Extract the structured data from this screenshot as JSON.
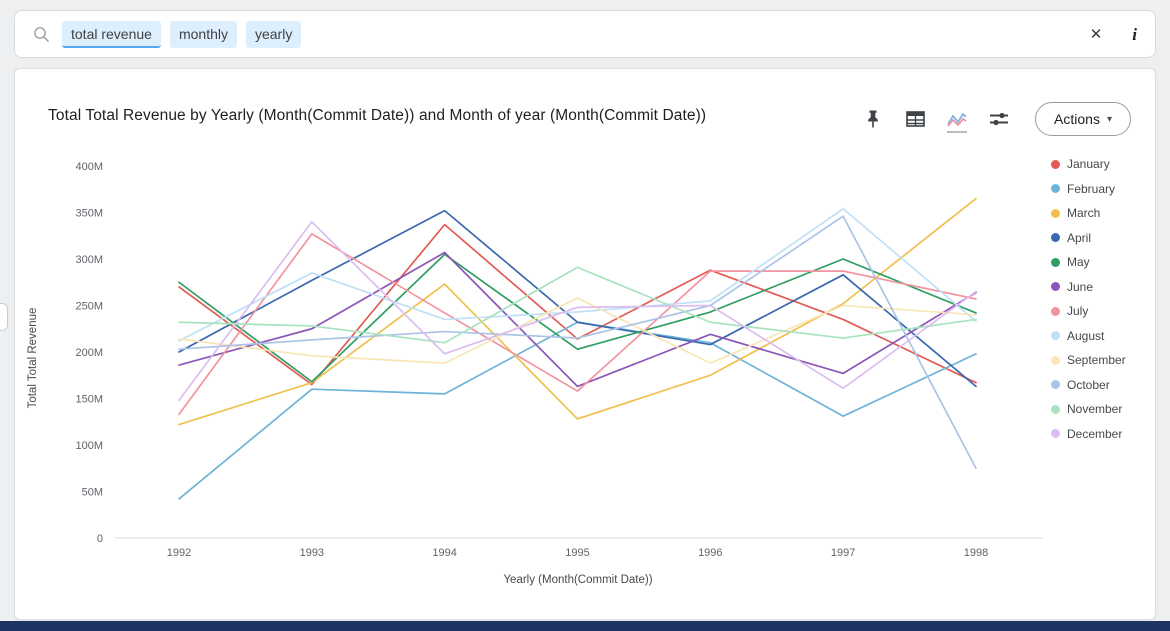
{
  "search_bar": {
    "tokens": [
      "total revenue",
      "monthly",
      "yearly"
    ],
    "active_token_index": 0,
    "clear_label": "✕",
    "info_label": "i"
  },
  "chart_card": {
    "title": "Total Total Revenue by Yearly (Month(Commit Date)) and Month of year (Month(Commit Date))",
    "actions_label": "Actions",
    "actions_caret": "▾"
  },
  "chart_data": {
    "type": "line",
    "title": "Total Total Revenue by Yearly (Month(Commit Date)) and Month of year (Month(Commit Date))",
    "xlabel": "Yearly (Month(Commit Date))",
    "ylabel": "Total Total Revenue",
    "categories": [
      "1992",
      "1993",
      "1994",
      "1995",
      "1996",
      "1997",
      "1998"
    ],
    "y_ticks": [
      "400M",
      "350M",
      "300M",
      "250M",
      "200M",
      "150M",
      "100M",
      "50M",
      "0"
    ],
    "ylim": [
      0,
      400
    ],
    "unit": "M (millions)",
    "grid": false,
    "legend_position": "right",
    "series": [
      {
        "name": "January",
        "color": "#e25c55",
        "values": [
          270,
          165,
          337,
          214,
          288,
          235,
          167
        ]
      },
      {
        "name": "February",
        "color": "#6fb3d9",
        "values": [
          42,
          160,
          155,
          232,
          210,
          131,
          198
        ]
      },
      {
        "name": "March",
        "color": "#f0c04d",
        "values": [
          122,
          167,
          273,
          128,
          175,
          252,
          365
        ]
      },
      {
        "name": "April",
        "color": "#3a68ae",
        "values": [
          200,
          277,
          352,
          232,
          208,
          283,
          163
        ]
      },
      {
        "name": "May",
        "color": "#2f9e62",
        "values": [
          275,
          168,
          305,
          203,
          243,
          300,
          242
        ]
      },
      {
        "name": "June",
        "color": "#8a56b8",
        "values": [
          186,
          225,
          307,
          163,
          219,
          177,
          264
        ]
      },
      {
        "name": "July",
        "color": "#f2949f",
        "values": [
          133,
          327,
          242,
          158,
          287,
          287,
          257
        ]
      },
      {
        "name": "August",
        "color": "#bfe0f5",
        "values": [
          212,
          285,
          235,
          243,
          255,
          354,
          233
        ]
      },
      {
        "name": "September",
        "color": "#f8e6b5",
        "values": [
          214,
          196,
          188,
          258,
          188,
          250,
          240
        ]
      },
      {
        "name": "October",
        "color": "#abc3e8",
        "values": [
          203,
          213,
          222,
          215,
          250,
          346,
          75
        ]
      },
      {
        "name": "November",
        "color": "#a8e3c0",
        "values": [
          232,
          228,
          210,
          291,
          232,
          215,
          235
        ]
      },
      {
        "name": "December",
        "color": "#dcbdf0",
        "values": [
          148,
          340,
          198,
          248,
          250,
          161,
          265
        ]
      }
    ]
  },
  "colors": {
    "accent_blue": "#55a9ee",
    "token_bg": "#ddeffd",
    "axis_line": "#d7dadd",
    "tick_text": "#5f6368",
    "footer_bar": "#1e3263"
  }
}
